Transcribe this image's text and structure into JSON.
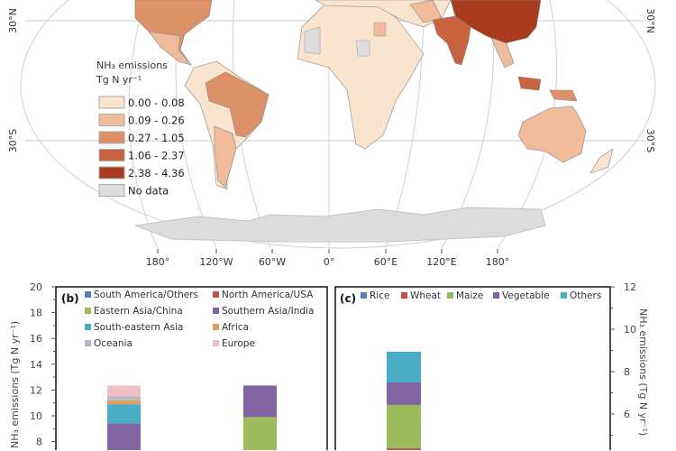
{
  "map": {
    "legend_title_line1": "NH₃ emissions",
    "legend_title_line2": "Tg N yr⁻¹",
    "legend": [
      {
        "label": "0.00 - 0.08",
        "color": "#f8e3cc"
      },
      {
        "label": "0.09 - 0.26",
        "color": "#efbb9a"
      },
      {
        "label": "0.27 - 1.05",
        "color": "#de9068"
      },
      {
        "label": "1.06 - 2.37",
        "color": "#c9633f"
      },
      {
        "label": "2.38 - 4.36",
        "color": "#a93a1d"
      },
      {
        "label": "No data",
        "color": "#dcdcdc"
      }
    ],
    "lon_labels": [
      "180°",
      "120°W",
      "60°W",
      "0°",
      "60°E",
      "120°E",
      "180°"
    ],
    "lat_labels": [
      "30°N",
      "30°S"
    ]
  },
  "chart_data": [
    {
      "type": "bar",
      "stacked": true,
      "panel_label": "(b)",
      "ylabel": "NH₃ emissions (Tg N yr⁻¹)",
      "ylim": [
        0,
        20
      ],
      "yticks": [
        8,
        10,
        12,
        14,
        16,
        18,
        20
      ],
      "legend": [
        {
          "name": "South America/Others",
          "color": "#4f7fbf"
        },
        {
          "name": "North America/USA",
          "color": "#c0504d"
        },
        {
          "name": "Eastern Asia/China",
          "color": "#9bbb59"
        },
        {
          "name": "Southern Asia/India",
          "color": "#8064a2"
        },
        {
          "name": "South-eastern Asia",
          "color": "#4bacc6"
        },
        {
          "name": "Africa",
          "color": "#e59b5a"
        },
        {
          "name": "Oceania",
          "color": "#b3b8c8"
        },
        {
          "name": "Europe",
          "color": "#eebfc4"
        }
      ],
      "bars": [
        {
          "segments": [
            {
              "name": "Southern Asia/India",
              "top": 9.4
            },
            {
              "name": "South-eastern Asia",
              "top": 10.9
            },
            {
              "name": "Africa",
              "top": 11.2
            },
            {
              "name": "Oceania",
              "top": 11.5
            },
            {
              "name": "Europe",
              "top": 12.35
            }
          ]
        },
        {
          "segments": [
            {
              "name": "Eastern Asia/China",
              "top": 9.9
            },
            {
              "name": "Southern Asia/India",
              "top": 12.35
            }
          ]
        }
      ]
    },
    {
      "type": "bar",
      "stacked": true,
      "panel_label": "(c)",
      "ylabel": "NH₃ emissions (Tg N yr⁻¹)",
      "ylim": [
        0,
        12
      ],
      "yticks": [
        6,
        8,
        10,
        12
      ],
      "y_axis_side": "right",
      "legend": [
        {
          "name": "Rice",
          "color": "#4f7fbf"
        },
        {
          "name": "Wheat",
          "color": "#c0504d"
        },
        {
          "name": "Maize",
          "color": "#9bbb59"
        },
        {
          "name": "Vegetable",
          "color": "#8064a2"
        },
        {
          "name": "Others",
          "color": "#4bacc6"
        }
      ],
      "bars": [
        {
          "segments": [
            {
              "name": "Wheat",
              "top": 4.38
            },
            {
              "name": "Maize",
              "top": 6.43
            },
            {
              "name": "Vegetable",
              "top": 7.49
            },
            {
              "name": "Others",
              "top": 8.94
            }
          ]
        }
      ]
    }
  ]
}
